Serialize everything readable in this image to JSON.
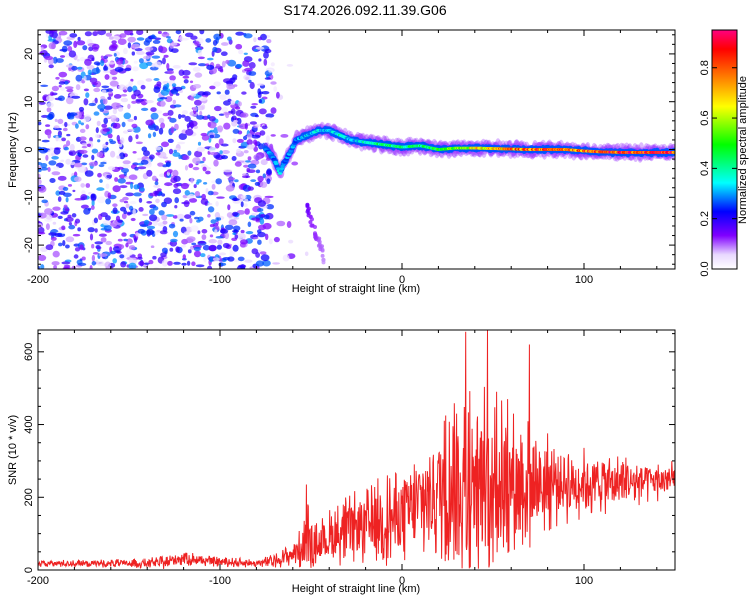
{
  "title": "S174.2026.092.11.39.G06",
  "chart_data": [
    {
      "type": "heatmap",
      "title": "",
      "xlabel": "Height of straight line (km)",
      "ylabel": "Frequency (Hz)",
      "xlim": [
        -200,
        150
      ],
      "ylim": [
        -25,
        25
      ],
      "x_ticks": [
        -200,
        -100,
        0,
        100
      ],
      "x_tick_labels": [
        "-200",
        "-100",
        "0",
        "100"
      ],
      "y_ticks": [
        -20,
        -10,
        0,
        10,
        20
      ],
      "y_tick_labels": [
        "-20",
        "-10",
        "0",
        "10",
        "20"
      ],
      "colorbar": {
        "label": "Normalized spectral amplitude",
        "range": [
          0,
          0.95
        ],
        "ticks": [
          0,
          0.2,
          0.4,
          0.6,
          0.8
        ],
        "tick_labels": [
          "0.0",
          "0.2",
          "0.4",
          "0.6",
          "0.8"
        ],
        "colormap": [
          "#ffffff",
          "#8000ff",
          "#0000ff",
          "#00ffff",
          "#00ff00",
          "#ffff00",
          "#ff8000",
          "#ff0000",
          "#ff0080"
        ]
      },
      "noise_region_x": [
        -200,
        -72
      ],
      "noise_amplitude_range": [
        0.02,
        0.3
      ],
      "ridge": {
        "x": [
          -75,
          -72,
          -69,
          -67,
          -65,
          -62,
          -58,
          -52,
          -46,
          -40,
          -34,
          -28,
          -20,
          -10,
          0,
          10,
          20,
          30,
          40,
          50,
          60,
          70,
          80,
          90,
          100,
          110,
          120,
          130,
          140,
          150
        ],
        "frequency": [
          0,
          -1,
          -3,
          -5,
          -3,
          -1,
          2,
          3,
          4,
          4,
          3,
          2,
          1.5,
          1,
          0.5,
          0.8,
          0,
          0.3,
          0.3,
          0.2,
          0.1,
          0,
          0,
          0,
          -0.3,
          -0.5,
          -0.6,
          -0.6,
          -0.6,
          -0.6
        ],
        "amplitude": [
          0.3,
          0.3,
          0.3,
          0.35,
          0.3,
          0.3,
          0.3,
          0.35,
          0.35,
          0.35,
          0.4,
          0.35,
          0.4,
          0.45,
          0.45,
          0.45,
          0.5,
          0.6,
          0.7,
          0.75,
          0.8,
          0.85,
          0.85,
          0.85,
          0.85,
          0.9,
          0.9,
          0.9,
          0.9,
          0.9
        ]
      },
      "secondary_branch": {
        "x": [
          -52,
          -50,
          -48,
          -46,
          -44,
          -43
        ],
        "frequency": [
          -12,
          -15,
          -17,
          -19,
          -21,
          -23
        ],
        "amplitude": [
          0.15,
          0.12,
          0.12,
          0.1,
          0.1,
          0.08
        ]
      }
    },
    {
      "type": "line",
      "title": "",
      "xlabel": "Height of straight line (km)",
      "ylabel": "SNR (10 * v/v)",
      "xlim": [
        -200,
        150
      ],
      "ylim": [
        0,
        660
      ],
      "x_ticks": [
        -200,
        -100,
        0,
        100
      ],
      "x_tick_labels": [
        "-200",
        "-100",
        "0",
        "100"
      ],
      "y_ticks": [
        0,
        200,
        400,
        600
      ],
      "y_tick_labels": [
        "0",
        "200",
        "400",
        "600"
      ],
      "color": "#ee2222",
      "envelope": {
        "x": [
          -200,
          -150,
          -130,
          -120,
          -110,
          -80,
          -70,
          -62,
          -55,
          -52,
          -48,
          -40,
          -30,
          -20,
          -10,
          0,
          10,
          20,
          30,
          35,
          40,
          45,
          50,
          60,
          70,
          80,
          90,
          100,
          120,
          140,
          150
        ],
        "base": [
          18,
          18,
          20,
          35,
          25,
          18,
          25,
          40,
          60,
          80,
          70,
          90,
          110,
          120,
          140,
          150,
          180,
          220,
          240,
          250,
          250,
          250,
          250,
          250,
          240,
          240,
          240,
          240,
          240,
          245,
          250
        ],
        "swing": [
          10,
          12,
          18,
          25,
          15,
          12,
          20,
          30,
          60,
          120,
          60,
          80,
          100,
          110,
          130,
          140,
          170,
          200,
          230,
          300,
          300,
          320,
          250,
          200,
          180,
          140,
          120,
          100,
          80,
          60,
          50
        ]
      },
      "peaks": [
        {
          "x": -52.5,
          "y": 235
        },
        {
          "x": 35,
          "y": 655
        },
        {
          "x": 47,
          "y": 662
        },
        {
          "x": 52,
          "y": 490
        },
        {
          "x": 58,
          "y": 470
        },
        {
          "x": 70,
          "y": 620
        },
        {
          "x": 24,
          "y": 425
        },
        {
          "x": 30,
          "y": 430
        }
      ]
    }
  ]
}
